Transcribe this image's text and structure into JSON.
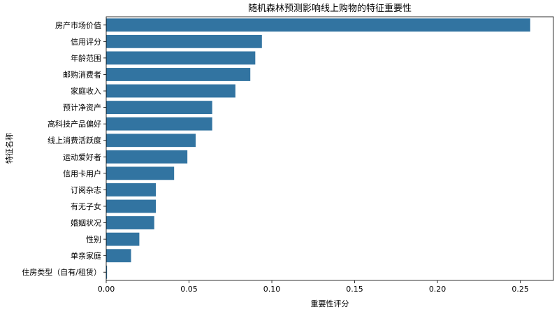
{
  "chart_data": {
    "type": "bar",
    "orientation": "horizontal",
    "title": "随机森林预测影响线上购物的特征重要性",
    "xlabel": "重要性评分",
    "ylabel": "特征名称",
    "xlim": [
      0,
      0.27
    ],
    "xticks": [
      0.0,
      0.05,
      0.1,
      0.15,
      0.2,
      0.25
    ],
    "xtick_labels": [
      "0.00",
      "0.05",
      "0.10",
      "0.15",
      "0.20",
      "0.25"
    ],
    "grid": false,
    "bar_color": "#3274a1",
    "categories": [
      "房产市场价值",
      "信用评分",
      "年龄范围",
      "邮购消费者",
      "家庭收入",
      "预计净资产",
      "高科技产品偏好",
      "线上消费活跃度",
      "运动爱好者",
      "信用卡用户",
      "订阅杂志",
      "有无子女",
      "婚姻状况",
      "性别",
      "单亲家庭",
      "住房类型（自有/租赁）"
    ],
    "values": [
      0.256,
      0.094,
      0.09,
      0.087,
      0.078,
      0.064,
      0.064,
      0.054,
      0.049,
      0.041,
      0.03,
      0.03,
      0.029,
      0.02,
      0.015,
      0.0005
    ]
  }
}
